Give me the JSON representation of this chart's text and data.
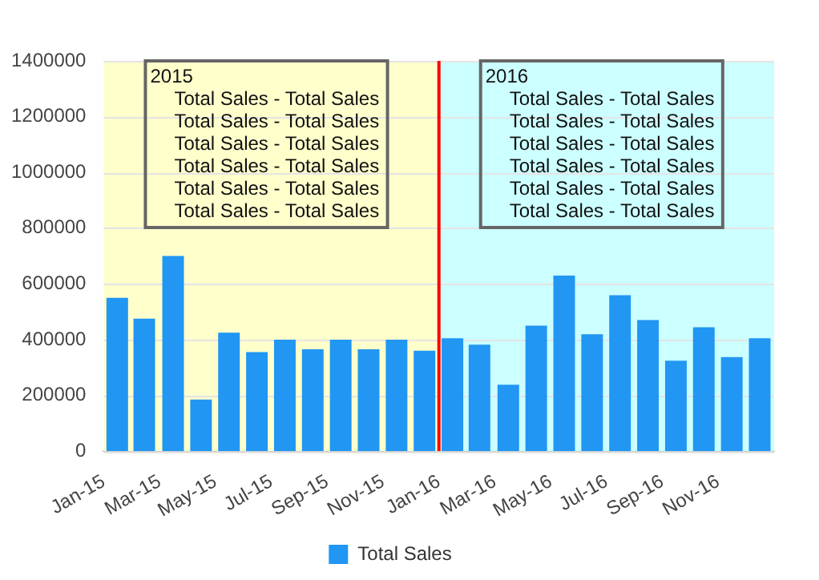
{
  "chart_data": {
    "type": "bar",
    "x": [
      "2015-01-16",
      "2015-02-15",
      "2015-03-16",
      "2015-04-16",
      "2015-05-16",
      "2015-06-16",
      "2015-07-16",
      "2015-08-16",
      "2015-09-16",
      "2015-10-16",
      "2015-11-16",
      "2015-12-16",
      "2016-01-16",
      "2016-02-15",
      "2016-03-16",
      "2016-04-16",
      "2016-05-16",
      "2016-06-16",
      "2016-07-16",
      "2016-08-16",
      "2016-09-16",
      "2016-10-16",
      "2016-11-16",
      "2016-12-16"
    ],
    "series": [
      {
        "name": "Total Sales",
        "color": "#2196f3",
        "values": [
          550000,
          475000,
          700000,
          185000,
          425000,
          355000,
          400000,
          365000,
          400000,
          365000,
          400000,
          360000,
          405000,
          382000,
          238000,
          450000,
          630000,
          419000,
          559000,
          470000,
          324000,
          444000,
          337000,
          405000
        ]
      }
    ],
    "xlim": [
      "2015-01",
      "2017-01"
    ],
    "xticks": [
      {
        "value": "2015-01",
        "label": "Jan-15"
      },
      {
        "value": "2015-03",
        "label": "Mar-15"
      },
      {
        "value": "2015-05",
        "label": "May-15"
      },
      {
        "value": "2015-07",
        "label": "Jul-15"
      },
      {
        "value": "2015-09",
        "label": "Sep-15"
      },
      {
        "value": "2015-11",
        "label": "Nov-15"
      },
      {
        "value": "2016-01",
        "label": "Jan-16"
      },
      {
        "value": "2016-03",
        "label": "Mar-16"
      },
      {
        "value": "2016-05",
        "label": "May-16"
      },
      {
        "value": "2016-07",
        "label": "Jul-16"
      },
      {
        "value": "2016-09",
        "label": "Sep-16"
      },
      {
        "value": "2016-11",
        "label": "Nov-16"
      }
    ],
    "ylim": [
      0,
      1400000
    ],
    "yticks": [
      0,
      200000,
      400000,
      600000,
      800000,
      1000000,
      1200000,
      1400000
    ],
    "bands": [
      {
        "axis": "x",
        "from": "2015-01",
        "to": "2016-01",
        "color": "#ffffcc",
        "label": "2015\nTotal Sales - Total Sales\nTotal Sales - Total Sales\nTotal Sales - Total Sales\nTotal Sales - Total Sales\nTotal Sales - Total Sales\nTotal Sales - Total Sales"
      },
      {
        "axis": "x",
        "from": "2016-01",
        "to": "2017-01",
        "color": "#ccffff",
        "label": "2016\nTotal Sales - Total Sales\nTotal Sales - Total Sales\nTotal Sales - Total Sales\nTotal Sales - Total Sales\nTotal Sales - Total Sales\nTotal Sales - Total Sales"
      }
    ],
    "ref_lines": [
      {
        "axis": "x",
        "value": "2016-01",
        "color": "#ff0000"
      }
    ],
    "grid": "y",
    "legend": "bottom"
  }
}
